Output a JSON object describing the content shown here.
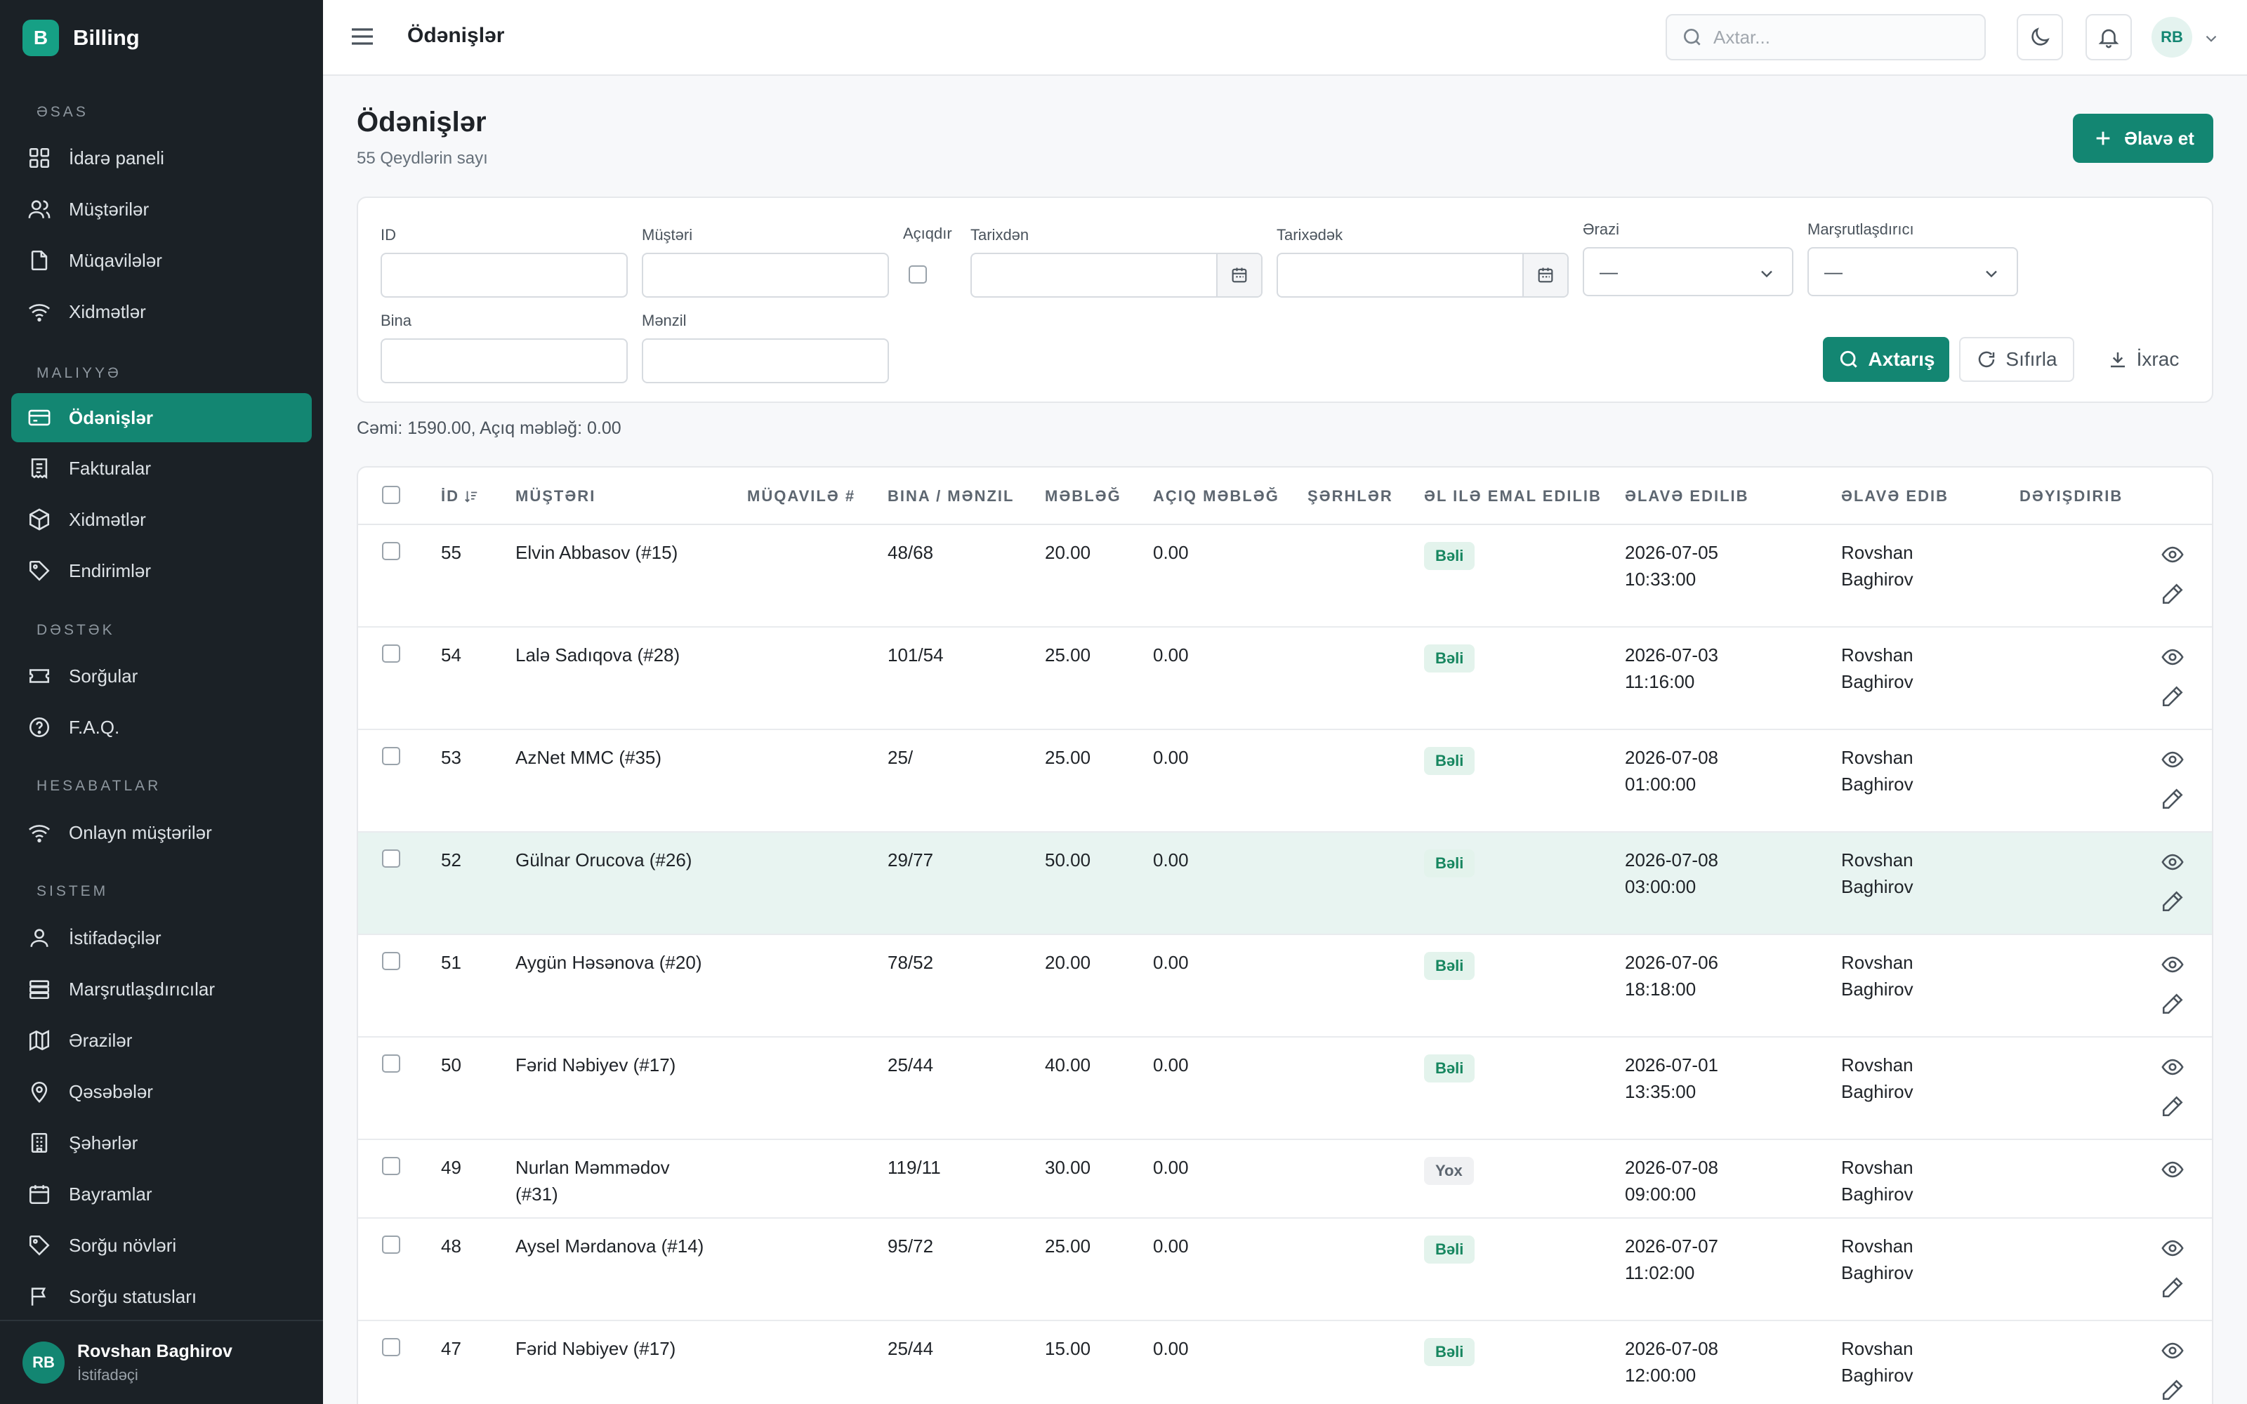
{
  "app": {
    "name": "Billing",
    "logo_letter": "B"
  },
  "sidebar": {
    "sections": [
      {
        "title": "Əsas",
        "items": [
          {
            "label": "İdarə paneli",
            "icon": "dashboard-icon"
          },
          {
            "label": "Müştərilər",
            "icon": "users-icon"
          },
          {
            "label": "Müqavilələr",
            "icon": "document-icon"
          },
          {
            "label": "Xidmətlər",
            "icon": "wifi-icon"
          }
        ]
      },
      {
        "title": "Maliyyə",
        "items": [
          {
            "label": "Ödənişlər",
            "icon": "credit-card-icon",
            "active": true
          },
          {
            "label": "Fakturalar",
            "icon": "receipt-icon"
          },
          {
            "label": "Xidmətlər",
            "icon": "box-icon"
          },
          {
            "label": "Endirimlər",
            "icon": "tag-icon"
          }
        ]
      },
      {
        "title": "Dəstək",
        "items": [
          {
            "label": "Sorğular",
            "icon": "ticket-icon"
          },
          {
            "label": "F.A.Q.",
            "icon": "help-circle-icon"
          }
        ]
      },
      {
        "title": "Hesabatlar",
        "items": [
          {
            "label": "Onlayn müştərilər",
            "icon": "wifi-icon"
          }
        ]
      },
      {
        "title": "Sistem",
        "items": [
          {
            "label": "İstifadəçilər",
            "icon": "user-icon"
          },
          {
            "label": "Marşrutlaşdırıcılar",
            "icon": "server-icon"
          },
          {
            "label": "Ərazilər",
            "icon": "map-icon"
          },
          {
            "label": "Qəsəbələr",
            "icon": "map-pin-icon"
          },
          {
            "label": "Şəhərlər",
            "icon": "building-icon"
          },
          {
            "label": "Bayramlar",
            "icon": "calendar-icon"
          },
          {
            "label": "Sorğu növləri",
            "icon": "tag-icon"
          },
          {
            "label": "Sorğu statusları",
            "icon": "flag-icon"
          }
        ]
      }
    ],
    "user": {
      "initials": "RB",
      "name": "Rovshan Baghirov",
      "role": "İstifadəçi"
    }
  },
  "header": {
    "title": "Ödənişlər",
    "search_placeholder": "Axtar...",
    "avatar_initials": "RB"
  },
  "page": {
    "title": "Ödənişlər",
    "subtitle": "55 Qeydlərin sayı",
    "add_button": "Əlavə et",
    "totals": "Cəmi: 1590.00, Açıq məbləğ: 0.00"
  },
  "filters": {
    "id_label": "ID",
    "customer_label": "Müştəri",
    "open_label": "Açıqdır",
    "date_from_label": "Tarixdən",
    "date_to_label": "Tarixədək",
    "area_label": "Ərazi",
    "area_value": "—",
    "router_label": "Marşrutlaşdırıcı",
    "router_value": "—",
    "building_label": "Bina",
    "apartment_label": "Mənzil",
    "search_button": "Axtarış",
    "reset_button": "Sıfırla",
    "export_button": "İxrac"
  },
  "table": {
    "columns": [
      "İD",
      "Müştəri",
      "Müqavilə #",
      "Bina / Mənzil",
      "Məbləğ",
      "Açıq məbləğ",
      "Şərhlər",
      "Əl ilə emal edilib",
      "Əlavə edilib",
      "Əlavə edib",
      "Dəyişdirib"
    ],
    "rows": [
      {
        "id": "55",
        "customer": "Elvin Abbasov (#15)",
        "contract": "",
        "address": "48/68",
        "amount": "20.00",
        "open": "0.00",
        "comments": "",
        "manual": "Bəli",
        "manual_yes": true,
        "date": "2026-07-05",
        "time": "10:33:00",
        "by_first": "Rovshan",
        "by_last": "Baghirov",
        "editable": true
      },
      {
        "id": "54",
        "customer": "Lalə Sadıqova (#28)",
        "contract": "",
        "address": "101/54",
        "amount": "25.00",
        "open": "0.00",
        "comments": "",
        "manual": "Bəli",
        "manual_yes": true,
        "date": "2026-07-03",
        "time": "11:16:00",
        "by_first": "Rovshan",
        "by_last": "Baghirov",
        "editable": true
      },
      {
        "id": "53",
        "customer": "AzNet MMC (#35)",
        "contract": "",
        "address": "25/",
        "amount": "25.00",
        "open": "0.00",
        "comments": "",
        "manual": "Bəli",
        "manual_yes": true,
        "date": "2026-07-08",
        "time": "01:00:00",
        "by_first": "Rovshan",
        "by_last": "Baghirov",
        "editable": true
      },
      {
        "id": "52",
        "customer": "Gülnar Orucova (#26)",
        "contract": "",
        "address": "29/77",
        "amount": "50.00",
        "open": "0.00",
        "comments": "",
        "manual": "Bəli",
        "manual_yes": true,
        "date": "2026-07-08",
        "time": "03:00:00",
        "by_first": "Rovshan",
        "by_last": "Baghirov",
        "editable": true,
        "highlight": true
      },
      {
        "id": "51",
        "customer": "Aygün Həsənova (#20)",
        "contract": "",
        "address": "78/52",
        "amount": "20.00",
        "open": "0.00",
        "comments": "",
        "manual": "Bəli",
        "manual_yes": true,
        "date": "2026-07-06",
        "time": "18:18:00",
        "by_first": "Rovshan",
        "by_last": "Baghirov",
        "editable": true
      },
      {
        "id": "50",
        "customer": "Fərid Nəbiyev (#17)",
        "contract": "",
        "address": "25/44",
        "amount": "40.00",
        "open": "0.00",
        "comments": "",
        "manual": "Bəli",
        "manual_yes": true,
        "date": "2026-07-01",
        "time": "13:35:00",
        "by_first": "Rovshan",
        "by_last": "Baghirov",
        "editable": true
      },
      {
        "id": "49",
        "customer": "Nurlan Məmmədov",
        "customer2": "(#31)",
        "contract": "",
        "address": "119/11",
        "amount": "30.00",
        "open": "0.00",
        "comments": "",
        "manual": "Yox",
        "manual_yes": false,
        "date": "2026-07-08",
        "time": "09:00:00",
        "by_first": "Rovshan",
        "by_last": "Baghirov",
        "editable": false
      },
      {
        "id": "48",
        "customer": "Aysel Mərdanova (#14)",
        "contract": "",
        "address": "95/72",
        "amount": "25.00",
        "open": "0.00",
        "comments": "",
        "manual": "Bəli",
        "manual_yes": true,
        "date": "2026-07-07",
        "time": "11:02:00",
        "by_first": "Rovshan",
        "by_last": "Baghirov",
        "editable": true
      },
      {
        "id": "47",
        "customer": "Fərid Nəbiyev (#17)",
        "contract": "",
        "address": "25/44",
        "amount": "15.00",
        "open": "0.00",
        "comments": "",
        "manual": "Bəli",
        "manual_yes": true,
        "date": "2026-07-08",
        "time": "12:00:00",
        "by_first": "Rovshan",
        "by_last": "Baghirov",
        "editable": true
      }
    ]
  },
  "colors": {
    "accent": "#138672",
    "sidebar_bg": "#1b2126",
    "highlight_row": "#e8f4f1"
  }
}
